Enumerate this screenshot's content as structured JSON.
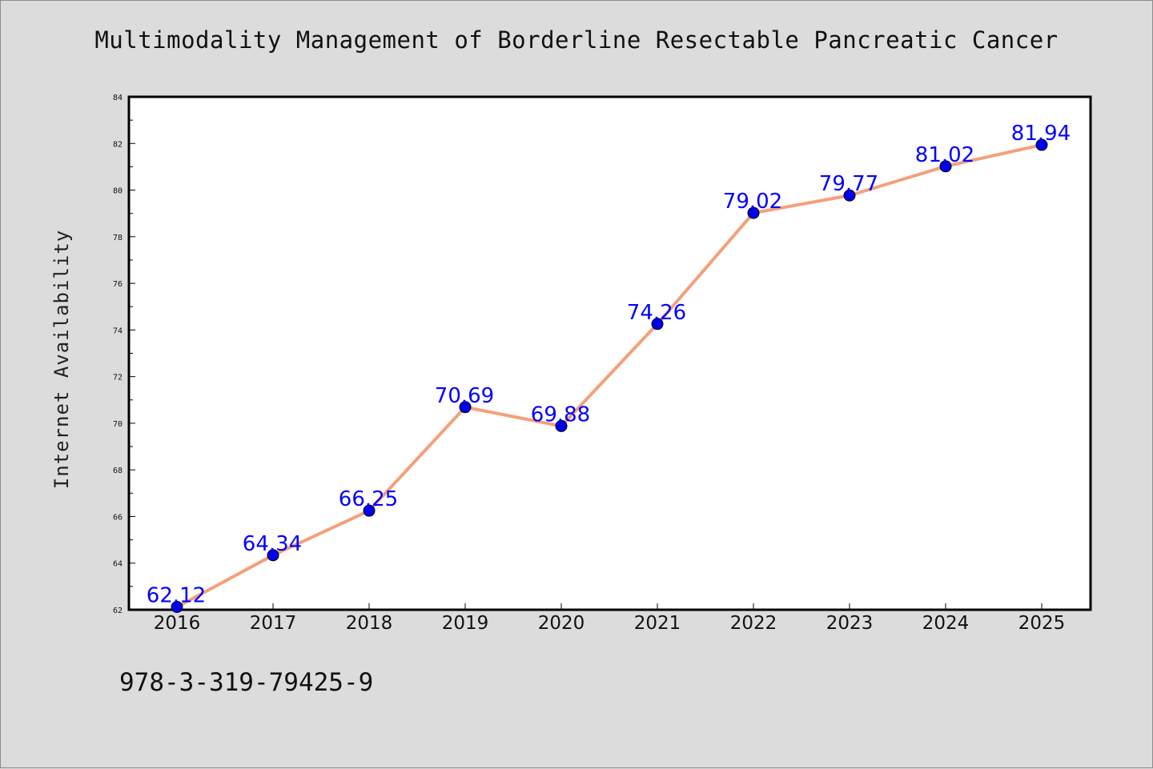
{
  "chart_data": {
    "type": "line",
    "title": "Multimodality Management of Borderline Resectable Pancreatic Cancer",
    "xlabel": "",
    "ylabel": "Internet Availability",
    "categories": [
      "2016",
      "2017",
      "2018",
      "2019",
      "2020",
      "2021",
      "2022",
      "2023",
      "2024",
      "2025"
    ],
    "series": [
      {
        "values": [
          62.12,
          64.34,
          66.25,
          70.69,
          69.88,
          74.26,
          79.02,
          79.77,
          81.02,
          81.94
        ],
        "labels": [
          "62.12",
          "64.34",
          "66.25",
          "70.69",
          "69.88",
          "74.26",
          "79.02",
          "79.77",
          "81.02",
          "81.94"
        ],
        "line_color": "#f4a07a",
        "marker_color": "#0000ee"
      }
    ],
    "ylim": [
      62,
      84
    ],
    "yticks": [
      "62",
      "64",
      "66",
      "68",
      "70",
      "72",
      "74",
      "76",
      "78",
      "80",
      "82",
      "84"
    ],
    "grid": false,
    "legend": "none",
    "data_label_color": "#0000ff"
  },
  "footer": {
    "code": "978-3-319-79425-9"
  }
}
